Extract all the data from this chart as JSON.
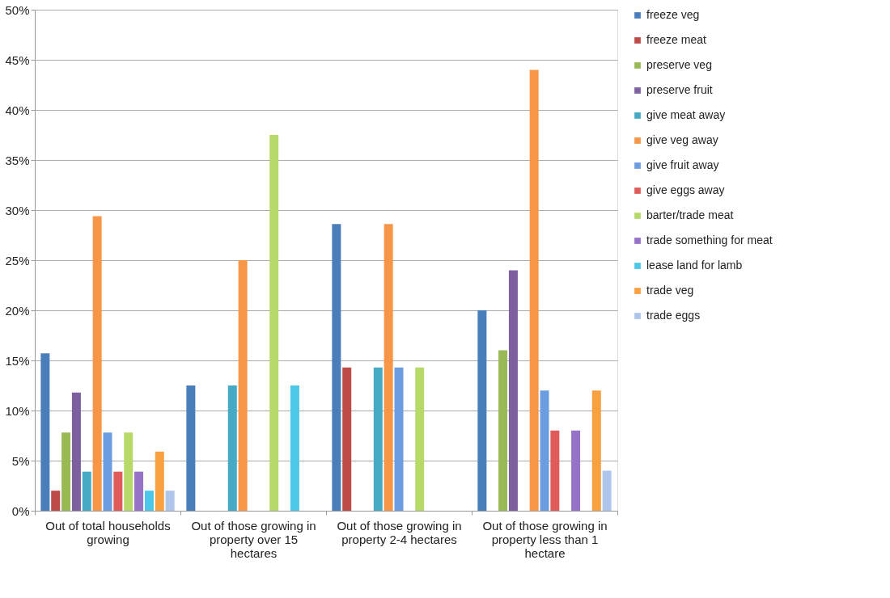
{
  "chart_data": {
    "type": "bar",
    "categories": [
      "Out of total households growing",
      "Out of those growing in property over 15 hectares",
      "Out of those growing in property 2-4 hectares",
      "Out of those growing in property less than 1 hectare"
    ],
    "series": [
      {
        "name": "freeze veg",
        "color": "#4a7ebb",
        "values": [
          15.7,
          12.5,
          28.6,
          20
        ]
      },
      {
        "name": "freeze meat",
        "color": "#be4b48",
        "values": [
          2,
          0,
          14.3,
          0
        ]
      },
      {
        "name": "preserve veg",
        "color": "#98b954",
        "values": [
          7.8,
          0,
          0,
          16
        ]
      },
      {
        "name": "preserve fruit",
        "color": "#7d60a0",
        "values": [
          11.8,
          0,
          0,
          24
        ]
      },
      {
        "name": "give meat away",
        "color": "#46aac5",
        "values": [
          3.9,
          12.5,
          14.3,
          0
        ]
      },
      {
        "name": "give veg away",
        "color": "#f79646",
        "values": [
          29.4,
          25,
          28.6,
          44
        ]
      },
      {
        "name": "give fruit away",
        "color": "#6b9de0",
        "values": [
          7.8,
          0,
          14.3,
          12
        ]
      },
      {
        "name": "give eggs away",
        "color": "#e05c5a",
        "values": [
          3.9,
          0,
          0,
          8
        ]
      },
      {
        "name": "barter/trade meat",
        "color": "#b6d96a",
        "values": [
          7.8,
          37.5,
          14.3,
          0
        ]
      },
      {
        "name": "trade something for meat",
        "color": "#9673c6",
        "values": [
          3.9,
          0,
          0,
          8
        ]
      },
      {
        "name": "lease land for lamb",
        "color": "#4bc8e8",
        "values": [
          2,
          12.5,
          0,
          0
        ]
      },
      {
        "name": "trade veg",
        "color": "#f9a040",
        "values": [
          5.9,
          0,
          0,
          12
        ]
      },
      {
        "name": "trade eggs",
        "color": "#aec5ec",
        "values": [
          2,
          0,
          0,
          4
        ]
      }
    ],
    "ylim": [
      0,
      50
    ],
    "yticks": [
      {
        "value": 0,
        "label": "0%"
      },
      {
        "value": 5,
        "label": "5%"
      },
      {
        "value": 10,
        "label": "10%"
      },
      {
        "value": 15,
        "label": "15%"
      },
      {
        "value": 20,
        "label": "20%"
      },
      {
        "value": 25,
        "label": "25%"
      },
      {
        "value": 30,
        "label": "30%"
      },
      {
        "value": 35,
        "label": "35%"
      },
      {
        "value": 40,
        "label": "40%"
      },
      {
        "value": 45,
        "label": "45%"
      },
      {
        "value": 50,
        "label": "50%"
      }
    ],
    "grid": "y",
    "legend": "right"
  }
}
